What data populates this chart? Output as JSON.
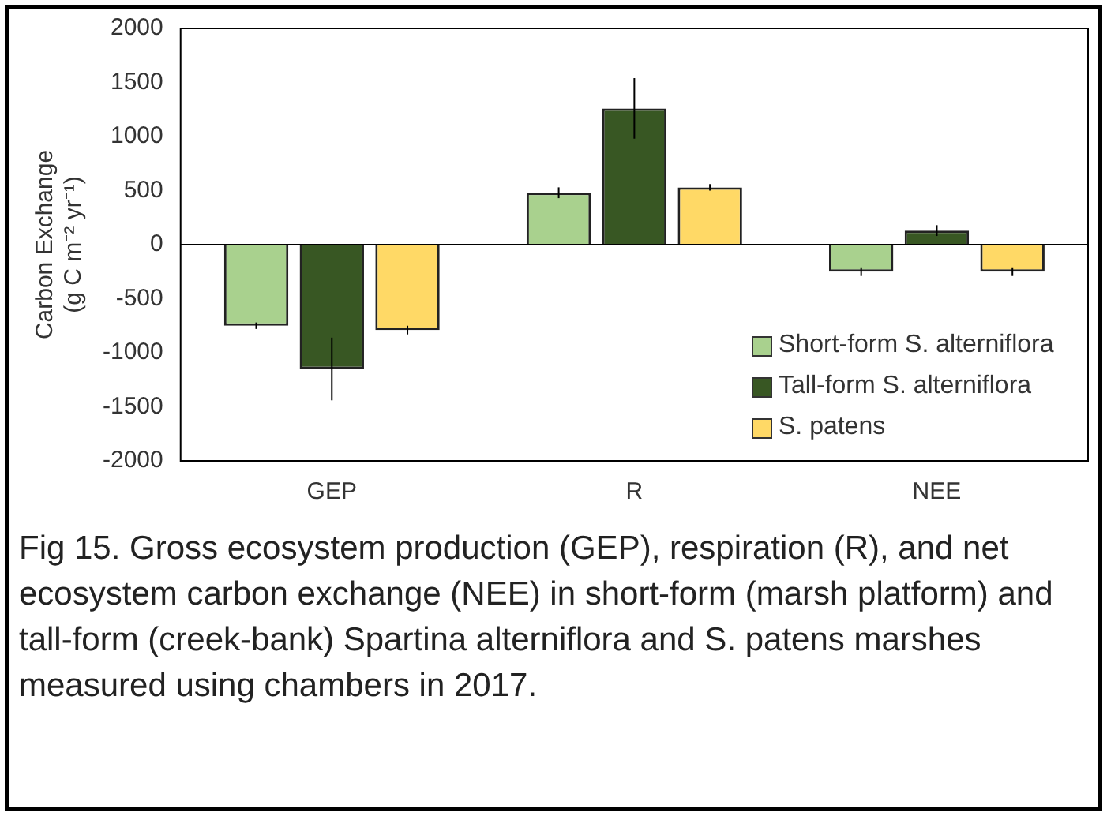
{
  "chart_data": {
    "type": "bar",
    "ylabel": "Carbon Exchange\n(g C m⁻² yr⁻¹)",
    "categories": [
      "GEP",
      "R",
      "NEE"
    ],
    "series": [
      {
        "name": "Short-form S. alterniflora",
        "color": "#a9d18e",
        "values": [
          -750,
          480,
          -250
        ],
        "errors": [
          30,
          50,
          40
        ]
      },
      {
        "name": "Tall-form S. alterniflora",
        "color": "#385723",
        "values": [
          -1150,
          1260,
          130
        ],
        "errors": [
          290,
          280,
          50
        ]
      },
      {
        "name": "S. patens",
        "color": "#ffd966",
        "values": [
          -790,
          530,
          -250
        ],
        "errors": [
          40,
          30,
          40
        ]
      }
    ],
    "ylim": [
      -2000,
      2000
    ],
    "yticks": [
      -2000,
      -1500,
      -1000,
      -500,
      0,
      500,
      1000,
      1500,
      2000
    ],
    "grid": false,
    "ref_lines": [
      {
        "axis": "y",
        "value": 0,
        "color": "#000000"
      }
    ],
    "legend": "bottom right",
    "annotations": [
      "Fig 15.  Gross ecosystem production (GEP), respiration (R), and net ecosystem carbon exchange (NEE) in short-form (marsh platform) and tall-form (creek-bank) Spartina alterniflora and S. patens marshes measured using chambers in 2017."
    ]
  }
}
